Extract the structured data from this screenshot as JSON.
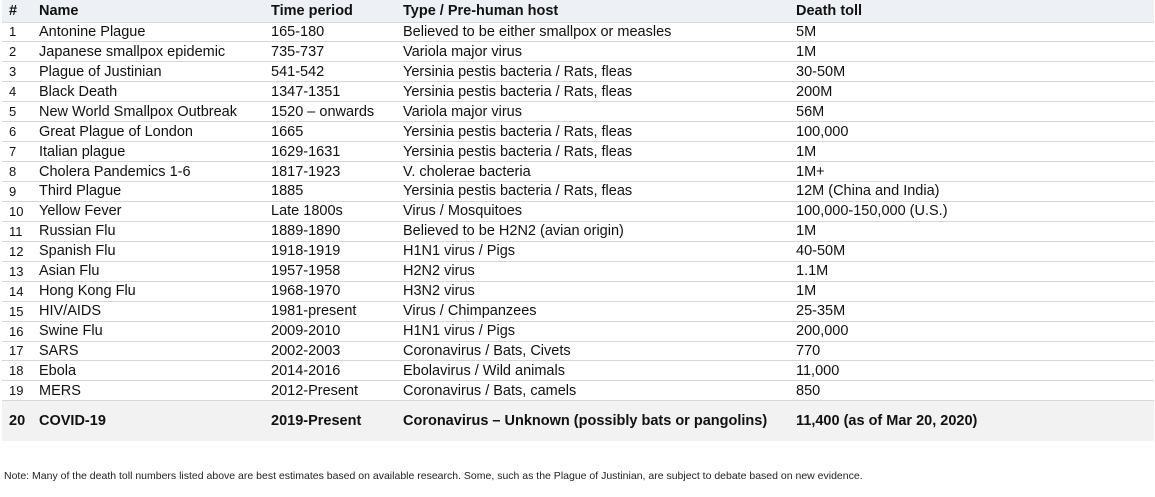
{
  "table": {
    "headers": {
      "num": "#",
      "name": "Name",
      "period": "Time period",
      "type": "Type / Pre-human host",
      "toll": "Death toll"
    },
    "rows": [
      {
        "num": "1",
        "name": "Antonine Plague",
        "period": "165-180",
        "type": "Believed to be either smallpox or measles",
        "toll": "5M"
      },
      {
        "num": "2",
        "name": "Japanese smallpox epidemic",
        "period": "735-737",
        "type": "Variola major virus",
        "toll": "1M"
      },
      {
        "num": "3",
        "name": "Plague of Justinian",
        "period": "541-542",
        "type": "Yersinia pestis bacteria / Rats, fleas",
        "toll": "30-50M"
      },
      {
        "num": "4",
        "name": "Black Death",
        "period": "1347-1351",
        "type": "Yersinia pestis bacteria / Rats, fleas",
        "toll": "200M"
      },
      {
        "num": "5",
        "name": "New World Smallpox Outbreak",
        "period": "1520 – onwards",
        "type": "Variola major virus",
        "toll": "56M"
      },
      {
        "num": "6",
        "name": "Great Plague of London",
        "period": "1665",
        "type": "Yersinia pestis bacteria / Rats, fleas",
        "toll": "100,000"
      },
      {
        "num": "7",
        "name": "Italian plague",
        "period": "1629-1631",
        "type": "Yersinia pestis bacteria / Rats, fleas",
        "toll": "1M"
      },
      {
        "num": "8",
        "name": "Cholera Pandemics 1-6",
        "period": "1817-1923",
        "type": "V. cholerae bacteria",
        "toll": "1M+"
      },
      {
        "num": "9",
        "name": "Third Plague",
        "period": "1885",
        "type": "Yersinia pestis bacteria / Rats, fleas",
        "toll": "12M (China and India)"
      },
      {
        "num": "10",
        "name": "Yellow Fever",
        "period": "Late 1800s",
        "type": "Virus / Mosquitoes",
        "toll": "100,000-150,000 (U.S.)"
      },
      {
        "num": "11",
        "name": "Russian Flu",
        "period": "1889-1890",
        "type": "Believed to be H2N2 (avian origin)",
        "toll": "1M"
      },
      {
        "num": "12",
        "name": "Spanish Flu",
        "period": "1918-1919",
        "type": "H1N1 virus / Pigs",
        "toll": "40-50M"
      },
      {
        "num": "13",
        "name": "Asian Flu",
        "period": "1957-1958",
        "type": "H2N2 virus",
        "toll": "1.1M"
      },
      {
        "num": "14",
        "name": "Hong Kong Flu",
        "period": "1968-1970",
        "type": "H3N2 virus",
        "toll": "1M"
      },
      {
        "num": "15",
        "name": "HIV/AIDS",
        "period": "1981-present",
        "type": "Virus / Chimpanzees",
        "toll": "25-35M"
      },
      {
        "num": "16",
        "name": "Swine Flu",
        "period": "2009-2010",
        "type": "H1N1 virus / Pigs",
        "toll": "200,000"
      },
      {
        "num": "17",
        "name": "SARS",
        "period": "2002-2003",
        "type": "Coronavirus / Bats, Civets",
        "toll": "770"
      },
      {
        "num": "18",
        "name": "Ebola",
        "period": "2014-2016",
        "type": "Ebolavirus / Wild animals",
        "toll": "11,000"
      },
      {
        "num": "19",
        "name": "MERS",
        "period": "2012-Present",
        "type": "Coronavirus / Bats, camels",
        "toll": "850"
      }
    ],
    "highlight_row": {
      "num": "20",
      "name": "COVID-19",
      "period": "2019-Present",
      "type": "Coronavirus – Unknown (possibly bats or pangolins)",
      "toll": "11,400 (as of Mar 20, 2020)"
    }
  },
  "note": "Note: Many of the death toll numbers listed above are best estimates based on available research. Some, such as the Plague of Justinian, are subject to debate based on new evidence."
}
